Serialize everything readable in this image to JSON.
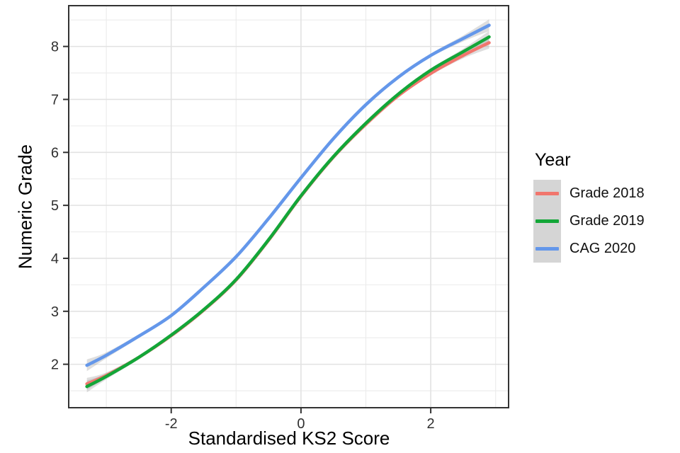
{
  "chart_data": {
    "type": "line",
    "title": "",
    "xlabel": "Standardised KS2 Score",
    "ylabel": "Numeric Grade",
    "legend_title": "Year",
    "legend_position": "right",
    "grid": true,
    "xlim": [
      -3.58,
      3.2
    ],
    "ylim": [
      1.18,
      8.77
    ],
    "x_ticks": [
      -2,
      0,
      2
    ],
    "x_minor": [
      -3,
      -1,
      1,
      3
    ],
    "y_ticks": [
      2,
      3,
      4,
      5,
      6,
      7,
      8
    ],
    "y_minor": [
      1.5,
      2.5,
      3.5,
      4.5,
      5.5,
      6.5,
      7.5,
      8.5
    ],
    "x": [
      -3.3,
      -3,
      -2.5,
      -2,
      -1.5,
      -1,
      -0.5,
      0,
      0.5,
      1,
      1.5,
      2,
      2.5,
      2.9
    ],
    "series": [
      {
        "name": "Grade 2018",
        "color": "#F1766D",
        "values": [
          1.63,
          1.79,
          2.13,
          2.54,
          3.02,
          3.59,
          4.34,
          5.17,
          5.91,
          6.53,
          7.07,
          7.49,
          7.83,
          8.07
        ]
      },
      {
        "name": "Grade 2019",
        "color": "#13A638",
        "values": [
          1.58,
          1.77,
          2.13,
          2.55,
          3.03,
          3.6,
          4.35,
          5.18,
          5.92,
          6.55,
          7.1,
          7.55,
          7.9,
          8.18
        ]
      },
      {
        "name": "CAG 2020",
        "color": "#6497EA",
        "values": [
          1.98,
          2.17,
          2.53,
          2.92,
          3.45,
          4.03,
          4.75,
          5.52,
          6.26,
          6.9,
          7.42,
          7.83,
          8.15,
          8.4
        ]
      }
    ]
  },
  "colors": {
    "panel_bg": "#FFFFFF",
    "panel_border": "#333333",
    "grid_major": "#E2E2E2",
    "grid_minor": "#EBEBEB",
    "tick_mark": "#333333",
    "tick_label": "#303030",
    "ribbon": "#999999",
    "legend_key_bg": "#D5D5D5"
  }
}
